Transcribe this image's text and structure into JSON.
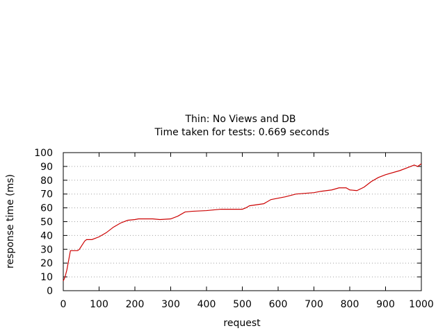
{
  "chart_data": {
    "type": "line",
    "title": "Thin: No Views and DB",
    "subtitle": "Time taken for tests: 0.669 seconds",
    "xlabel": "request",
    "ylabel": "response time (ms)",
    "xlim": [
      0,
      1000
    ],
    "ylim": [
      0,
      100
    ],
    "xticks": [
      0,
      100,
      200,
      300,
      400,
      500,
      600,
      700,
      800,
      900,
      1000
    ],
    "yticks": [
      0,
      10,
      20,
      30,
      40,
      50,
      60,
      70,
      80,
      90,
      100
    ],
    "grid": "horizontal dotted",
    "legend": "none",
    "series": [
      {
        "color": "#cc0000",
        "x": [
          0,
          5,
          10,
          15,
          20,
          30,
          40,
          45,
          50,
          60,
          65,
          70,
          80,
          100,
          120,
          140,
          160,
          180,
          200,
          210,
          250,
          270,
          300,
          320,
          340,
          360,
          400,
          420,
          440,
          460,
          500,
          510,
          520,
          560,
          580,
          620,
          650,
          700,
          720,
          750,
          770,
          790,
          800,
          820,
          840,
          860,
          880,
          900,
          940,
          960,
          980,
          990,
          1000
        ],
        "y": [
          7,
          10,
          15,
          22,
          29,
          29,
          29,
          30,
          32,
          36,
          37,
          37,
          37,
          39,
          42,
          46,
          49,
          51,
          51.5,
          52,
          52,
          51.5,
          52,
          54,
          57,
          57.5,
          58,
          58.5,
          59,
          59,
          59,
          60,
          61.5,
          63,
          66,
          68,
          70,
          71,
          72,
          73,
          74.5,
          74.5,
          73,
          72.5,
          75,
          79,
          82,
          84,
          87,
          89,
          91,
          90,
          92
        ]
      }
    ]
  }
}
